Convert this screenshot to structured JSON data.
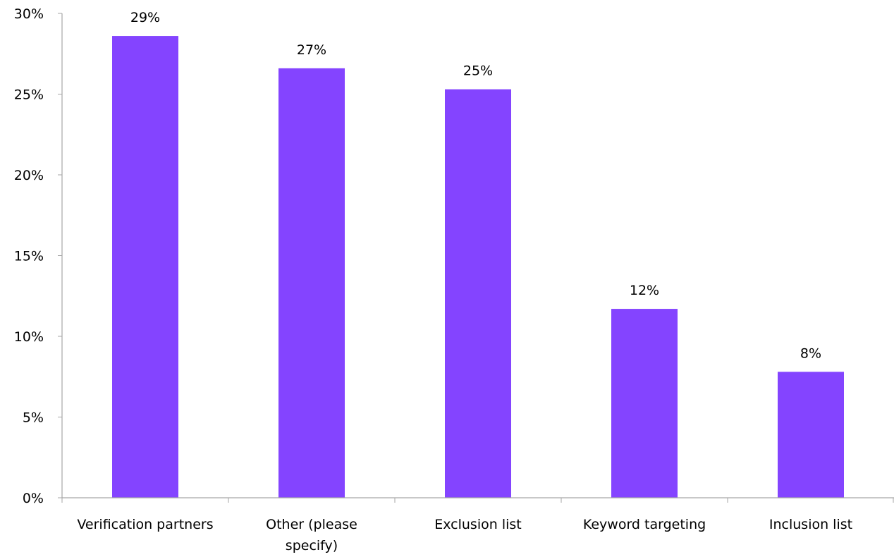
{
  "chart_data": {
    "type": "bar",
    "title": "",
    "xlabel": "",
    "ylabel": "",
    "categories": [
      "Verification partners",
      "Other (please specify)",
      "Exclusion list",
      "Keyword targeting",
      "Inclusion list"
    ],
    "category_lines": [
      [
        "Verification partners"
      ],
      [
        "Other (please",
        "specify)"
      ],
      [
        "Exclusion list"
      ],
      [
        "Keyword targeting"
      ],
      [
        "Inclusion list"
      ]
    ],
    "values": [
      28.6,
      26.6,
      25.3,
      11.7,
      7.8
    ],
    "data_labels": [
      "29%",
      "27%",
      "25%",
      "12%",
      "8%"
    ],
    "ylim": [
      0,
      30
    ],
    "yticks": [
      0,
      5,
      10,
      15,
      20,
      25,
      30
    ],
    "ytick_labels": [
      "0%",
      "5%",
      "10%",
      "15%",
      "20%",
      "25%",
      "30%"
    ],
    "grid": false,
    "legend": "none",
    "bar_color": "#8444FF",
    "axis_color": "#A6A6A6"
  }
}
